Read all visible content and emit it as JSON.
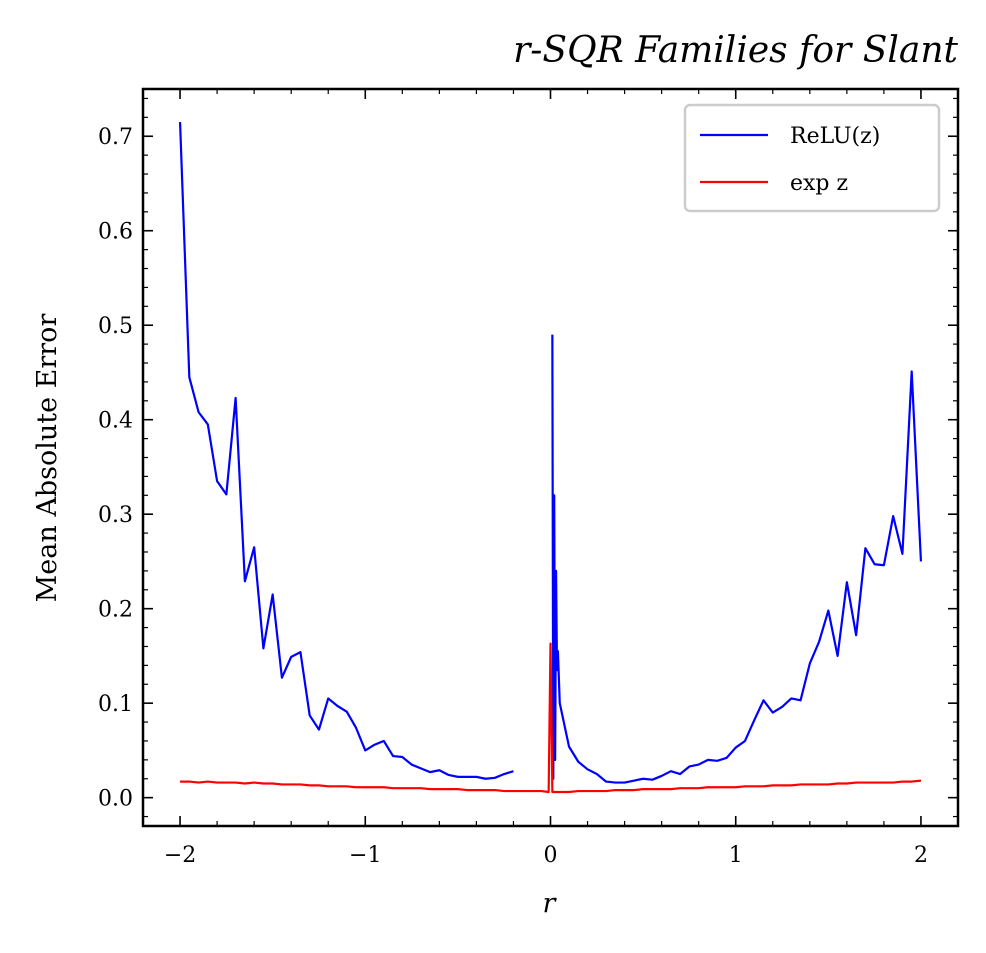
{
  "chart_data": {
    "type": "line",
    "title": "r-SQR Families for Slant",
    "xlabel": "r",
    "ylabel": "Mean Absolute Error",
    "xlim": [
      -2.2,
      2.2
    ],
    "ylim": [
      -0.03,
      0.75
    ],
    "xticks": [
      -2,
      -1,
      0,
      1,
      2
    ],
    "xtick_labels": [
      "−2",
      "−1",
      "0",
      "1",
      "2"
    ],
    "yticks": [
      0.0,
      0.1,
      0.2,
      0.3,
      0.4,
      0.5,
      0.6,
      0.7
    ],
    "ytick_labels": [
      "0.0",
      "0.1",
      "0.2",
      "0.3",
      "0.4",
      "0.5",
      "0.6",
      "0.7"
    ],
    "grid": false,
    "legend_position": "top-right",
    "series": [
      {
        "name": "ReLU(z)",
        "color": "#0000ff",
        "segments": [
          [
            [
              -2.0,
              0.715
            ],
            [
              -1.95,
              0.445
            ],
            [
              -1.9,
              0.408
            ],
            [
              -1.85,
              0.395
            ],
            [
              -1.8,
              0.335
            ],
            [
              -1.75,
              0.321
            ],
            [
              -1.7,
              0.423
            ],
            [
              -1.65,
              0.229
            ],
            [
              -1.6,
              0.265
            ],
            [
              -1.55,
              0.158
            ],
            [
              -1.5,
              0.215
            ],
            [
              -1.45,
              0.127
            ],
            [
              -1.4,
              0.149
            ],
            [
              -1.35,
              0.154
            ],
            [
              -1.3,
              0.087
            ],
            [
              -1.25,
              0.072
            ],
            [
              -1.2,
              0.105
            ],
            [
              -1.15,
              0.097
            ],
            [
              -1.1,
              0.091
            ],
            [
              -1.05,
              0.074
            ],
            [
              -1.0,
              0.05
            ],
            [
              -0.95,
              0.056
            ],
            [
              -0.9,
              0.06
            ],
            [
              -0.85,
              0.044
            ],
            [
              -0.8,
              0.043
            ],
            [
              -0.75,
              0.035
            ],
            [
              -0.7,
              0.031
            ],
            [
              -0.65,
              0.027
            ],
            [
              -0.6,
              0.029
            ],
            [
              -0.55,
              0.024
            ],
            [
              -0.5,
              0.022
            ],
            [
              -0.45,
              0.022
            ],
            [
              -0.4,
              0.022
            ],
            [
              -0.35,
              0.02
            ],
            [
              -0.3,
              0.021
            ],
            [
              -0.25,
              0.025
            ],
            [
              -0.2,
              0.028
            ]
          ],
          [
            [
              0.01,
              0.49
            ],
            [
              0.015,
              0.02
            ],
            [
              0.02,
              0.32
            ],
            [
              0.025,
              0.04
            ],
            [
              0.03,
              0.24
            ],
            [
              0.035,
              0.135
            ],
            [
              0.04,
              0.155
            ],
            [
              0.05,
              0.1
            ],
            [
              0.1,
              0.054
            ],
            [
              0.15,
              0.038
            ],
            [
              0.2,
              0.03
            ],
            [
              0.25,
              0.025
            ],
            [
              0.3,
              0.017
            ],
            [
              0.35,
              0.016
            ],
            [
              0.4,
              0.016
            ],
            [
              0.45,
              0.018
            ],
            [
              0.5,
              0.02
            ],
            [
              0.55,
              0.019
            ],
            [
              0.6,
              0.023
            ],
            [
              0.65,
              0.028
            ],
            [
              0.7,
              0.025
            ],
            [
              0.75,
              0.033
            ],
            [
              0.8,
              0.035
            ],
            [
              0.85,
              0.04
            ],
            [
              0.9,
              0.039
            ],
            [
              0.95,
              0.042
            ],
            [
              1.0,
              0.053
            ],
            [
              1.05,
              0.06
            ],
            [
              1.1,
              0.082
            ],
            [
              1.15,
              0.103
            ],
            [
              1.2,
              0.09
            ],
            [
              1.25,
              0.096
            ],
            [
              1.3,
              0.105
            ],
            [
              1.35,
              0.103
            ],
            [
              1.4,
              0.142
            ],
            [
              1.45,
              0.165
            ],
            [
              1.5,
              0.198
            ],
            [
              1.55,
              0.15
            ],
            [
              1.6,
              0.228
            ],
            [
              1.65,
              0.172
            ],
            [
              1.7,
              0.264
            ],
            [
              1.75,
              0.247
            ],
            [
              1.8,
              0.246
            ],
            [
              1.85,
              0.298
            ],
            [
              1.9,
              0.258
            ],
            [
              1.95,
              0.451
            ],
            [
              2.0,
              0.25
            ]
          ]
        ]
      },
      {
        "name": "exp z",
        "color": "#ff0000",
        "segments": [
          [
            [
              -2.0,
              0.017
            ],
            [
              -1.95,
              0.017
            ],
            [
              -1.9,
              0.016
            ],
            [
              -1.85,
              0.017
            ],
            [
              -1.8,
              0.016
            ],
            [
              -1.75,
              0.016
            ],
            [
              -1.7,
              0.016
            ],
            [
              -1.65,
              0.015
            ],
            [
              -1.6,
              0.016
            ],
            [
              -1.55,
              0.015
            ],
            [
              -1.5,
              0.015
            ],
            [
              -1.45,
              0.014
            ],
            [
              -1.4,
              0.014
            ],
            [
              -1.35,
              0.014
            ],
            [
              -1.3,
              0.013
            ],
            [
              -1.25,
              0.013
            ],
            [
              -1.2,
              0.012
            ],
            [
              -1.15,
              0.012
            ],
            [
              -1.1,
              0.012
            ],
            [
              -1.05,
              0.011
            ],
            [
              -1.0,
              0.011
            ],
            [
              -0.95,
              0.011
            ],
            [
              -0.9,
              0.011
            ],
            [
              -0.85,
              0.01
            ],
            [
              -0.8,
              0.01
            ],
            [
              -0.75,
              0.01
            ],
            [
              -0.7,
              0.01
            ],
            [
              -0.65,
              0.009
            ],
            [
              -0.6,
              0.009
            ],
            [
              -0.55,
              0.009
            ],
            [
              -0.5,
              0.009
            ],
            [
              -0.45,
              0.008
            ],
            [
              -0.4,
              0.008
            ],
            [
              -0.35,
              0.008
            ],
            [
              -0.3,
              0.008
            ],
            [
              -0.25,
              0.007
            ],
            [
              -0.2,
              0.007
            ],
            [
              -0.15,
              0.007
            ],
            [
              -0.1,
              0.007
            ],
            [
              -0.05,
              0.007
            ],
            [
              -0.01,
              0.006
            ],
            [
              0.0,
              0.163
            ],
            [
              0.01,
              0.006
            ],
            [
              0.05,
              0.006
            ],
            [
              0.1,
              0.006
            ],
            [
              0.15,
              0.007
            ],
            [
              0.2,
              0.007
            ],
            [
              0.25,
              0.007
            ],
            [
              0.3,
              0.007
            ],
            [
              0.35,
              0.008
            ],
            [
              0.4,
              0.008
            ],
            [
              0.45,
              0.008
            ],
            [
              0.5,
              0.009
            ],
            [
              0.55,
              0.009
            ],
            [
              0.6,
              0.009
            ],
            [
              0.65,
              0.009
            ],
            [
              0.7,
              0.01
            ],
            [
              0.75,
              0.01
            ],
            [
              0.8,
              0.01
            ],
            [
              0.85,
              0.011
            ],
            [
              0.9,
              0.011
            ],
            [
              0.95,
              0.011
            ],
            [
              1.0,
              0.011
            ],
            [
              1.05,
              0.012
            ],
            [
              1.1,
              0.012
            ],
            [
              1.15,
              0.012
            ],
            [
              1.2,
              0.013
            ],
            [
              1.25,
              0.013
            ],
            [
              1.3,
              0.013
            ],
            [
              1.35,
              0.014
            ],
            [
              1.4,
              0.014
            ],
            [
              1.45,
              0.014
            ],
            [
              1.5,
              0.014
            ],
            [
              1.55,
              0.015
            ],
            [
              1.6,
              0.015
            ],
            [
              1.65,
              0.016
            ],
            [
              1.7,
              0.016
            ],
            [
              1.75,
              0.016
            ],
            [
              1.8,
              0.016
            ],
            [
              1.85,
              0.016
            ],
            [
              1.9,
              0.017
            ],
            [
              1.95,
              0.017
            ],
            [
              2.0,
              0.018
            ]
          ]
        ]
      }
    ]
  }
}
